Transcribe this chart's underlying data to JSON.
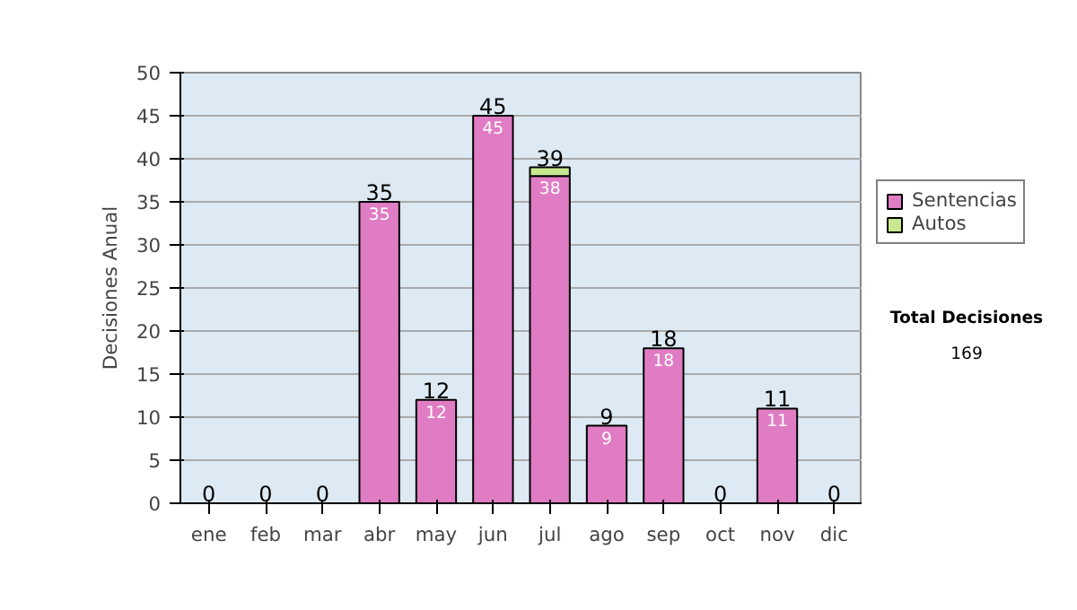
{
  "chart_data": {
    "type": "bar",
    "stacked": true,
    "ylabel": "Decisiones Anual",
    "categories": [
      "ene",
      "feb",
      "mar",
      "abr",
      "may",
      "jun",
      "jul",
      "ago",
      "sep",
      "oct",
      "nov",
      "dic"
    ],
    "series": [
      {
        "name": "Sentencias",
        "color": "#e07cc4",
        "values": [
          0,
          0,
          0,
          35,
          12,
          45,
          38,
          9,
          18,
          0,
          11,
          0
        ],
        "value_labels": [
          null,
          null,
          null,
          "35",
          "12",
          "45",
          "38",
          "9",
          "18",
          null,
          "11",
          null
        ]
      },
      {
        "name": "Autos",
        "color": "#c8e890",
        "values": [
          0,
          0,
          0,
          0,
          0,
          0,
          1,
          0,
          0,
          0,
          0,
          0
        ]
      }
    ],
    "totals": [
      "0",
      "0",
      "0",
      "35",
      "12",
      "45",
      "39",
      "9",
      "18",
      "0",
      "11",
      "0"
    ],
    "ylim": [
      0,
      50
    ],
    "yticks": [
      0,
      5,
      10,
      15,
      20,
      25,
      30,
      35,
      40,
      45,
      50
    ],
    "grid": "y",
    "legend": "right",
    "annotations": [
      "Total Decisiones",
      "169"
    ]
  }
}
